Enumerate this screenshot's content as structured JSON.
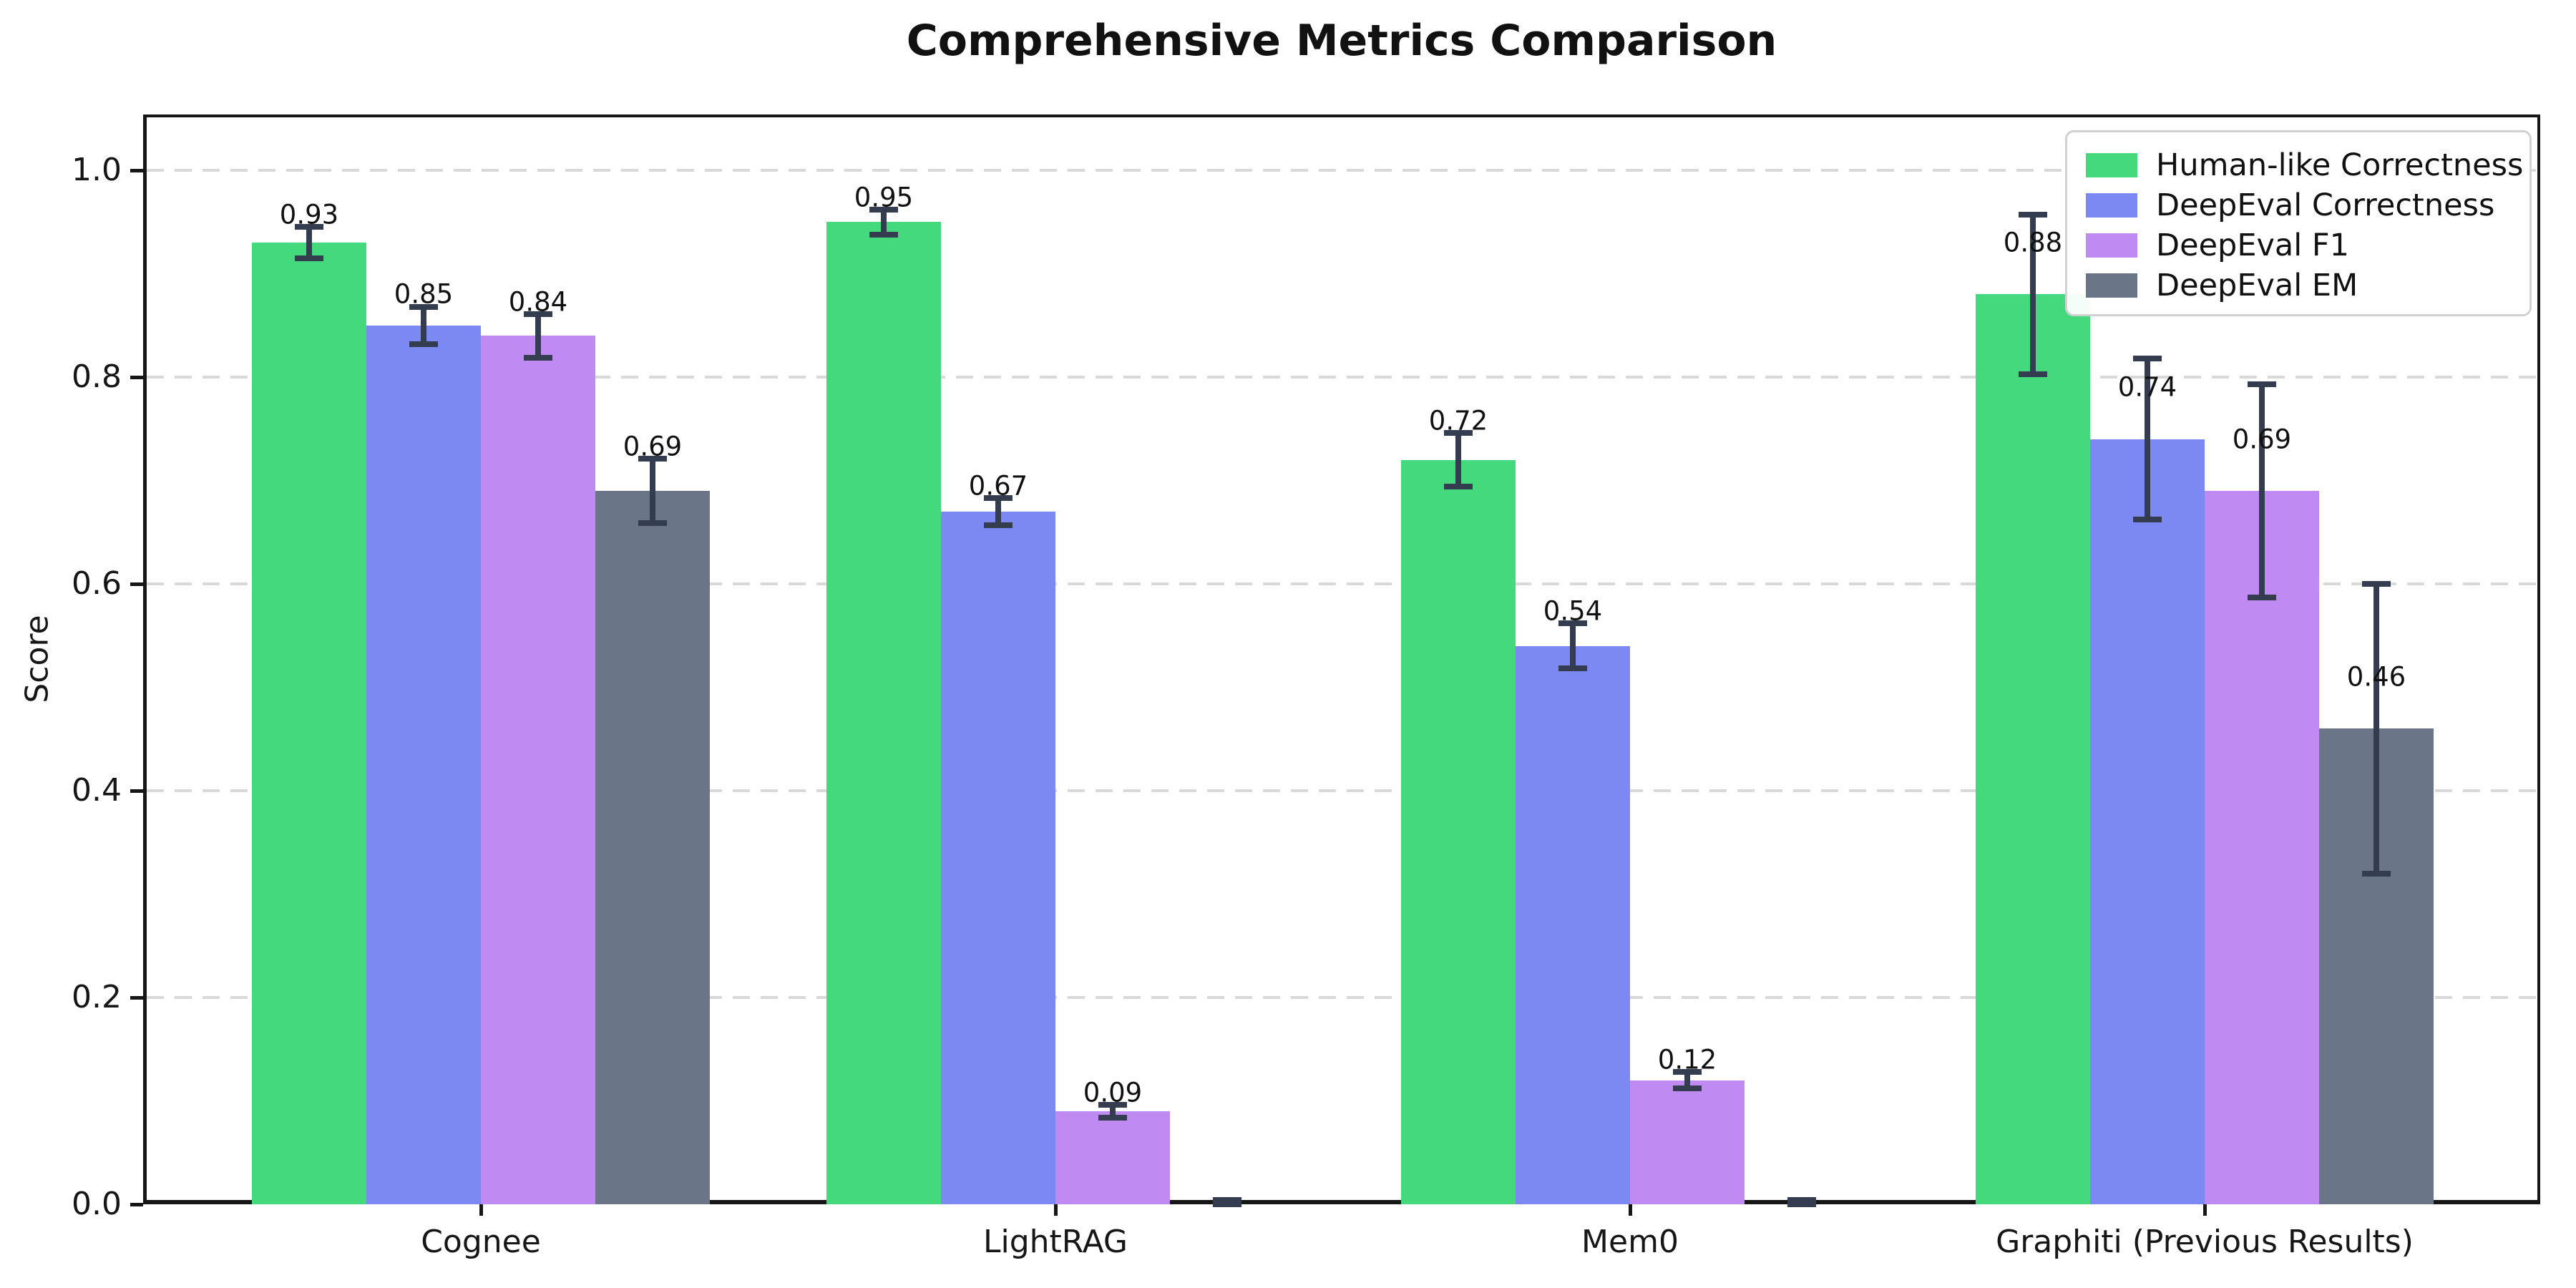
{
  "title": "Comprehensive Metrics Comparison",
  "chart_data": {
    "type": "bar",
    "title": "Comprehensive Metrics Comparison",
    "xlabel": "",
    "ylabel": "Score",
    "categories": [
      "Cognee",
      "LightRAG",
      "Mem0",
      "Graphiti (Previous Results)"
    ],
    "series": [
      {
        "name": "Human-like Correctness",
        "color": "#45d97e",
        "values": [
          0.93,
          0.95,
          0.72,
          0.88
        ],
        "errors": [
          0.015,
          0.012,
          0.026,
          0.077
        ]
      },
      {
        "name": "DeepEval Correctness",
        "color": "#7c89f2",
        "values": [
          0.85,
          0.67,
          0.54,
          0.74
        ],
        "errors": [
          0.018,
          0.013,
          0.022,
          0.078
        ]
      },
      {
        "name": "DeepEval F1",
        "color": "#c08af3",
        "values": [
          0.84,
          0.09,
          0.12,
          0.69
        ],
        "errors": [
          0.021,
          0.006,
          0.008,
          0.103
        ]
      },
      {
        "name": "DeepEval EM",
        "color": "#6a7587",
        "values": [
          0.69,
          0.0,
          0.0,
          0.46
        ],
        "errors": [
          0.031,
          0.004,
          0.004,
          0.14
        ]
      }
    ],
    "bar_value_labels": {
      "format": "0.00",
      "shown_for_zero_bars": false
    },
    "yticks": [
      0.0,
      0.2,
      0.4,
      0.6,
      0.8,
      1.0
    ],
    "ylim": [
      0.0,
      1.054
    ],
    "grid": "horizontal-dashed",
    "gridline_color": "#d9d9d9",
    "error_bar_color": "#333d4f",
    "legend_position": "upper right",
    "background_color": "#ffffff",
    "axis_color": "#161616"
  }
}
